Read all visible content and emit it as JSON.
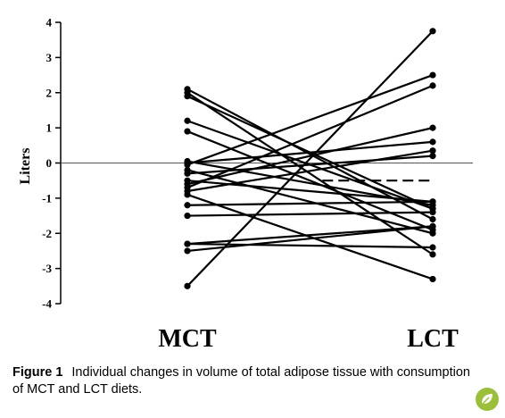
{
  "chart_data": {
    "type": "line",
    "categories": [
      "MCT",
      "LCT"
    ],
    "ylabel": "Liters",
    "ylim": [
      -4,
      4
    ],
    "yticks": [
      4,
      3,
      2,
      1,
      0,
      -1,
      -2,
      -3,
      -4
    ],
    "reference_line": 0,
    "pairs": [
      [
        2.1,
        -1.6
      ],
      [
        2.0,
        -2.6
      ],
      [
        1.9,
        -1.3
      ],
      [
        1.2,
        -1.3
      ],
      [
        0.9,
        -1.9
      ],
      [
        0.05,
        -1.2
      ],
      [
        0.0,
        0.6
      ],
      [
        -0.05,
        2.5
      ],
      [
        -0.2,
        -2.0
      ],
      [
        -0.3,
        0.2
      ],
      [
        -0.5,
        -1.1
      ],
      [
        -0.6,
        1.0
      ],
      [
        -0.7,
        2.2
      ],
      [
        -0.8,
        0.35
      ],
      [
        -0.9,
        -3.3
      ],
      [
        -1.2,
        -1.1
      ],
      [
        -1.5,
        -1.4
      ],
      [
        -2.3,
        -1.8
      ],
      [
        -2.3,
        -2.4
      ],
      [
        -2.5,
        -1.8
      ],
      [
        -3.5,
        3.75
      ]
    ],
    "mean_change": {
      "style": "dashed",
      "from": [
        0.55,
        -0.5
      ],
      "to": [
        1.0,
        -0.5
      ]
    }
  },
  "caption": {
    "label": "Figure 1",
    "text": "Individual changes in volume of total adipose tissue with consumption of MCT and LCT diets."
  },
  "logo": {
    "icon": "leaf-logo-icon",
    "color": "#9bbf3b"
  }
}
